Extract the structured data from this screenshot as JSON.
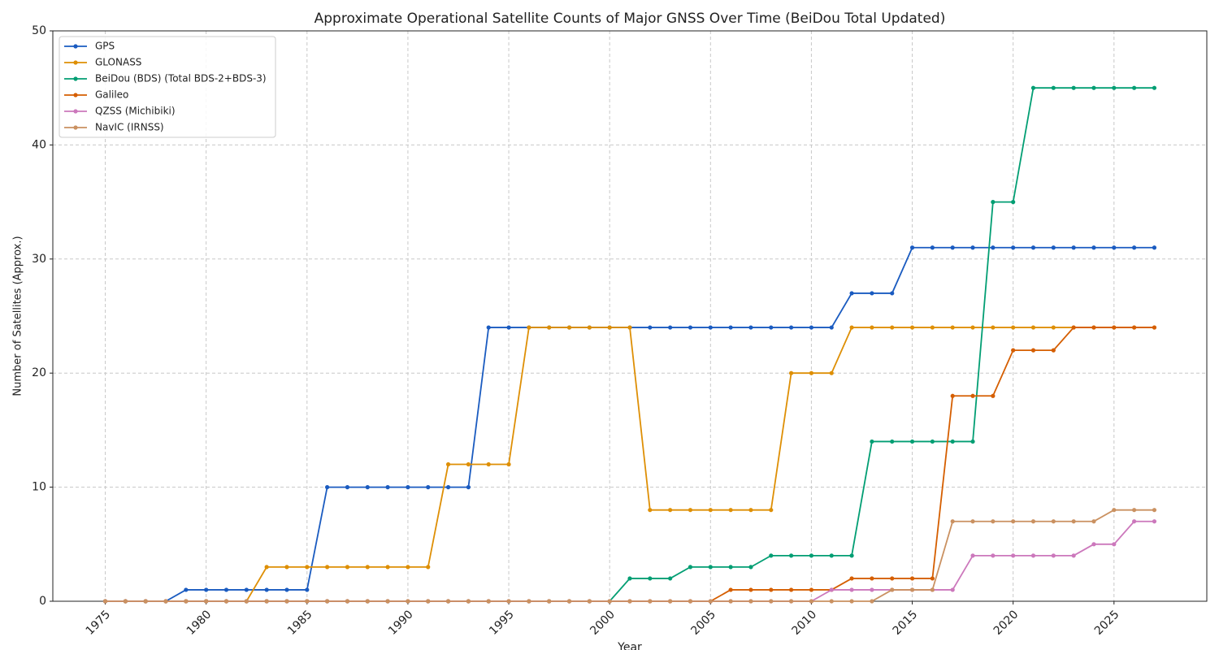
{
  "chart_data": {
    "type": "line",
    "title": "Approximate Operational Satellite Counts of Major GNSS Over Time (BeiDou Total Updated)",
    "xlabel": "Year",
    "ylabel": "Number of Satellites (Approx.)",
    "x": [
      1975,
      1976,
      1977,
      1978,
      1979,
      1980,
      1981,
      1982,
      1983,
      1984,
      1985,
      1986,
      1987,
      1988,
      1989,
      1990,
      1991,
      1992,
      1993,
      1994,
      1995,
      1996,
      1997,
      1998,
      1999,
      2000,
      2001,
      2002,
      2003,
      2004,
      2005,
      2006,
      2007,
      2008,
      2009,
      2010,
      2011,
      2012,
      2013,
      2014,
      2015,
      2016,
      2017,
      2018,
      2019,
      2020,
      2021,
      2022,
      2023,
      2024,
      2025,
      2026,
      2027
    ],
    "series": [
      {
        "name": "GPS",
        "color": "#1a5bc0",
        "values": [
          0,
          0,
          0,
          0,
          1,
          1,
          1,
          1,
          1,
          1,
          1,
          10,
          10,
          10,
          10,
          10,
          10,
          10,
          10,
          24,
          24,
          24,
          24,
          24,
          24,
          24,
          24,
          24,
          24,
          24,
          24,
          24,
          24,
          24,
          24,
          24,
          24,
          27,
          27,
          27,
          31,
          31,
          31,
          31,
          31,
          31,
          31,
          31,
          31,
          31,
          31,
          31,
          31
        ]
      },
      {
        "name": "GLONASS",
        "color": "#de8f05",
        "values": [
          0,
          0,
          0,
          0,
          0,
          0,
          0,
          0,
          3,
          3,
          3,
          3,
          3,
          3,
          3,
          3,
          3,
          12,
          12,
          12,
          12,
          24,
          24,
          24,
          24,
          24,
          24,
          8,
          8,
          8,
          8,
          8,
          8,
          8,
          20,
          20,
          20,
          24,
          24,
          24,
          24,
          24,
          24,
          24,
          24,
          24,
          24,
          24,
          24,
          24,
          24,
          24,
          24
        ]
      },
      {
        "name": "BeiDou (BDS) (Total BDS-2+BDS-3)",
        "color": "#029e73",
        "values": [
          0,
          0,
          0,
          0,
          0,
          0,
          0,
          0,
          0,
          0,
          0,
          0,
          0,
          0,
          0,
          0,
          0,
          0,
          0,
          0,
          0,
          0,
          0,
          0,
          0,
          0,
          2,
          2,
          2,
          3,
          3,
          3,
          3,
          4,
          4,
          4,
          4,
          4,
          14,
          14,
          14,
          14,
          14,
          14,
          35,
          35,
          45,
          45,
          45,
          45,
          45,
          45,
          45
        ]
      },
      {
        "name": "Galileo",
        "color": "#d55e00",
        "values": [
          0,
          0,
          0,
          0,
          0,
          0,
          0,
          0,
          0,
          0,
          0,
          0,
          0,
          0,
          0,
          0,
          0,
          0,
          0,
          0,
          0,
          0,
          0,
          0,
          0,
          0,
          0,
          0,
          0,
          0,
          0,
          1,
          1,
          1,
          1,
          1,
          1,
          2,
          2,
          2,
          2,
          2,
          18,
          18,
          18,
          22,
          22,
          22,
          24,
          24,
          24,
          24,
          24
        ]
      },
      {
        "name": "QZSS (Michibiki)",
        "color": "#cc78bc",
        "values": [
          0,
          0,
          0,
          0,
          0,
          0,
          0,
          0,
          0,
          0,
          0,
          0,
          0,
          0,
          0,
          0,
          0,
          0,
          0,
          0,
          0,
          0,
          0,
          0,
          0,
          0,
          0,
          0,
          0,
          0,
          0,
          0,
          0,
          0,
          0,
          0,
          1,
          1,
          1,
          1,
          1,
          1,
          1,
          4,
          4,
          4,
          4,
          4,
          4,
          5,
          5,
          7,
          7
        ]
      },
      {
        "name": "NavIC (IRNSS)",
        "color": "#ca9161",
        "values": [
          0,
          0,
          0,
          0,
          0,
          0,
          0,
          0,
          0,
          0,
          0,
          0,
          0,
          0,
          0,
          0,
          0,
          0,
          0,
          0,
          0,
          0,
          0,
          0,
          0,
          0,
          0,
          0,
          0,
          0,
          0,
          0,
          0,
          0,
          0,
          0,
          0,
          0,
          0,
          1,
          1,
          1,
          7,
          7,
          7,
          7,
          7,
          7,
          7,
          7,
          8,
          8,
          8
        ]
      }
    ],
    "xlim": [
      1972.4,
      2029.6
    ],
    "xticks": [
      1975,
      1980,
      1985,
      1990,
      1995,
      2000,
      2005,
      2010,
      2015,
      2020,
      2025
    ],
    "ylim": [
      0,
      50
    ],
    "yticks": [
      0,
      10,
      20,
      30,
      40,
      50
    ],
    "grid": true,
    "legend": "upper left"
  }
}
